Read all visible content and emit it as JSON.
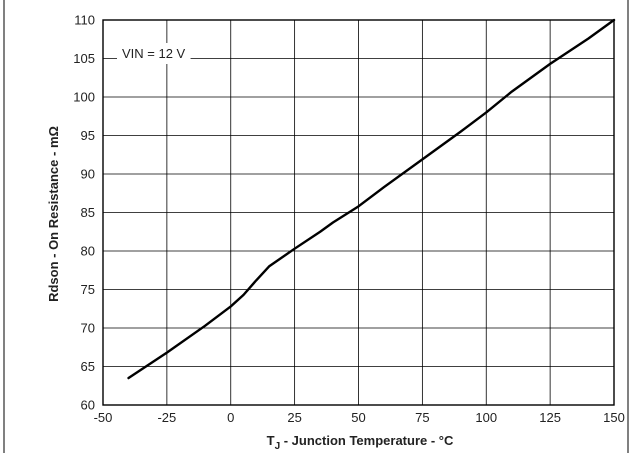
{
  "chart_data": {
    "type": "line",
    "title": "",
    "xlabel_main": "T",
    "xlabel_sub": "J",
    "xlabel_rest": " - Junction Temperature - °C",
    "ylabel": "Rdson - On Resistance - mΩ",
    "xlim": [
      -50,
      150
    ],
    "ylim": [
      60,
      110
    ],
    "x_ticks": [
      -50,
      -25,
      0,
      25,
      50,
      75,
      100,
      125,
      150
    ],
    "y_ticks": [
      60,
      65,
      70,
      75,
      80,
      85,
      90,
      95,
      100,
      105,
      110
    ],
    "grid": true,
    "annotation": "VIN = 12 V",
    "series": [
      {
        "x": [
          -40,
          -25,
          -10,
          0,
          5,
          10,
          15,
          25,
          35,
          40,
          50,
          60,
          75,
          90,
          100,
          110,
          125,
          140,
          150
        ],
        "values": [
          63.5,
          66.8,
          70.3,
          72.8,
          74.3,
          76.2,
          78.0,
          80.3,
          82.5,
          83.7,
          85.8,
          88.3,
          91.9,
          95.5,
          98.0,
          100.7,
          104.3,
          107.6,
          110.0
        ]
      }
    ],
    "colors": {
      "line": "#000000",
      "grid": "#000000",
      "frame": "#000000"
    }
  }
}
